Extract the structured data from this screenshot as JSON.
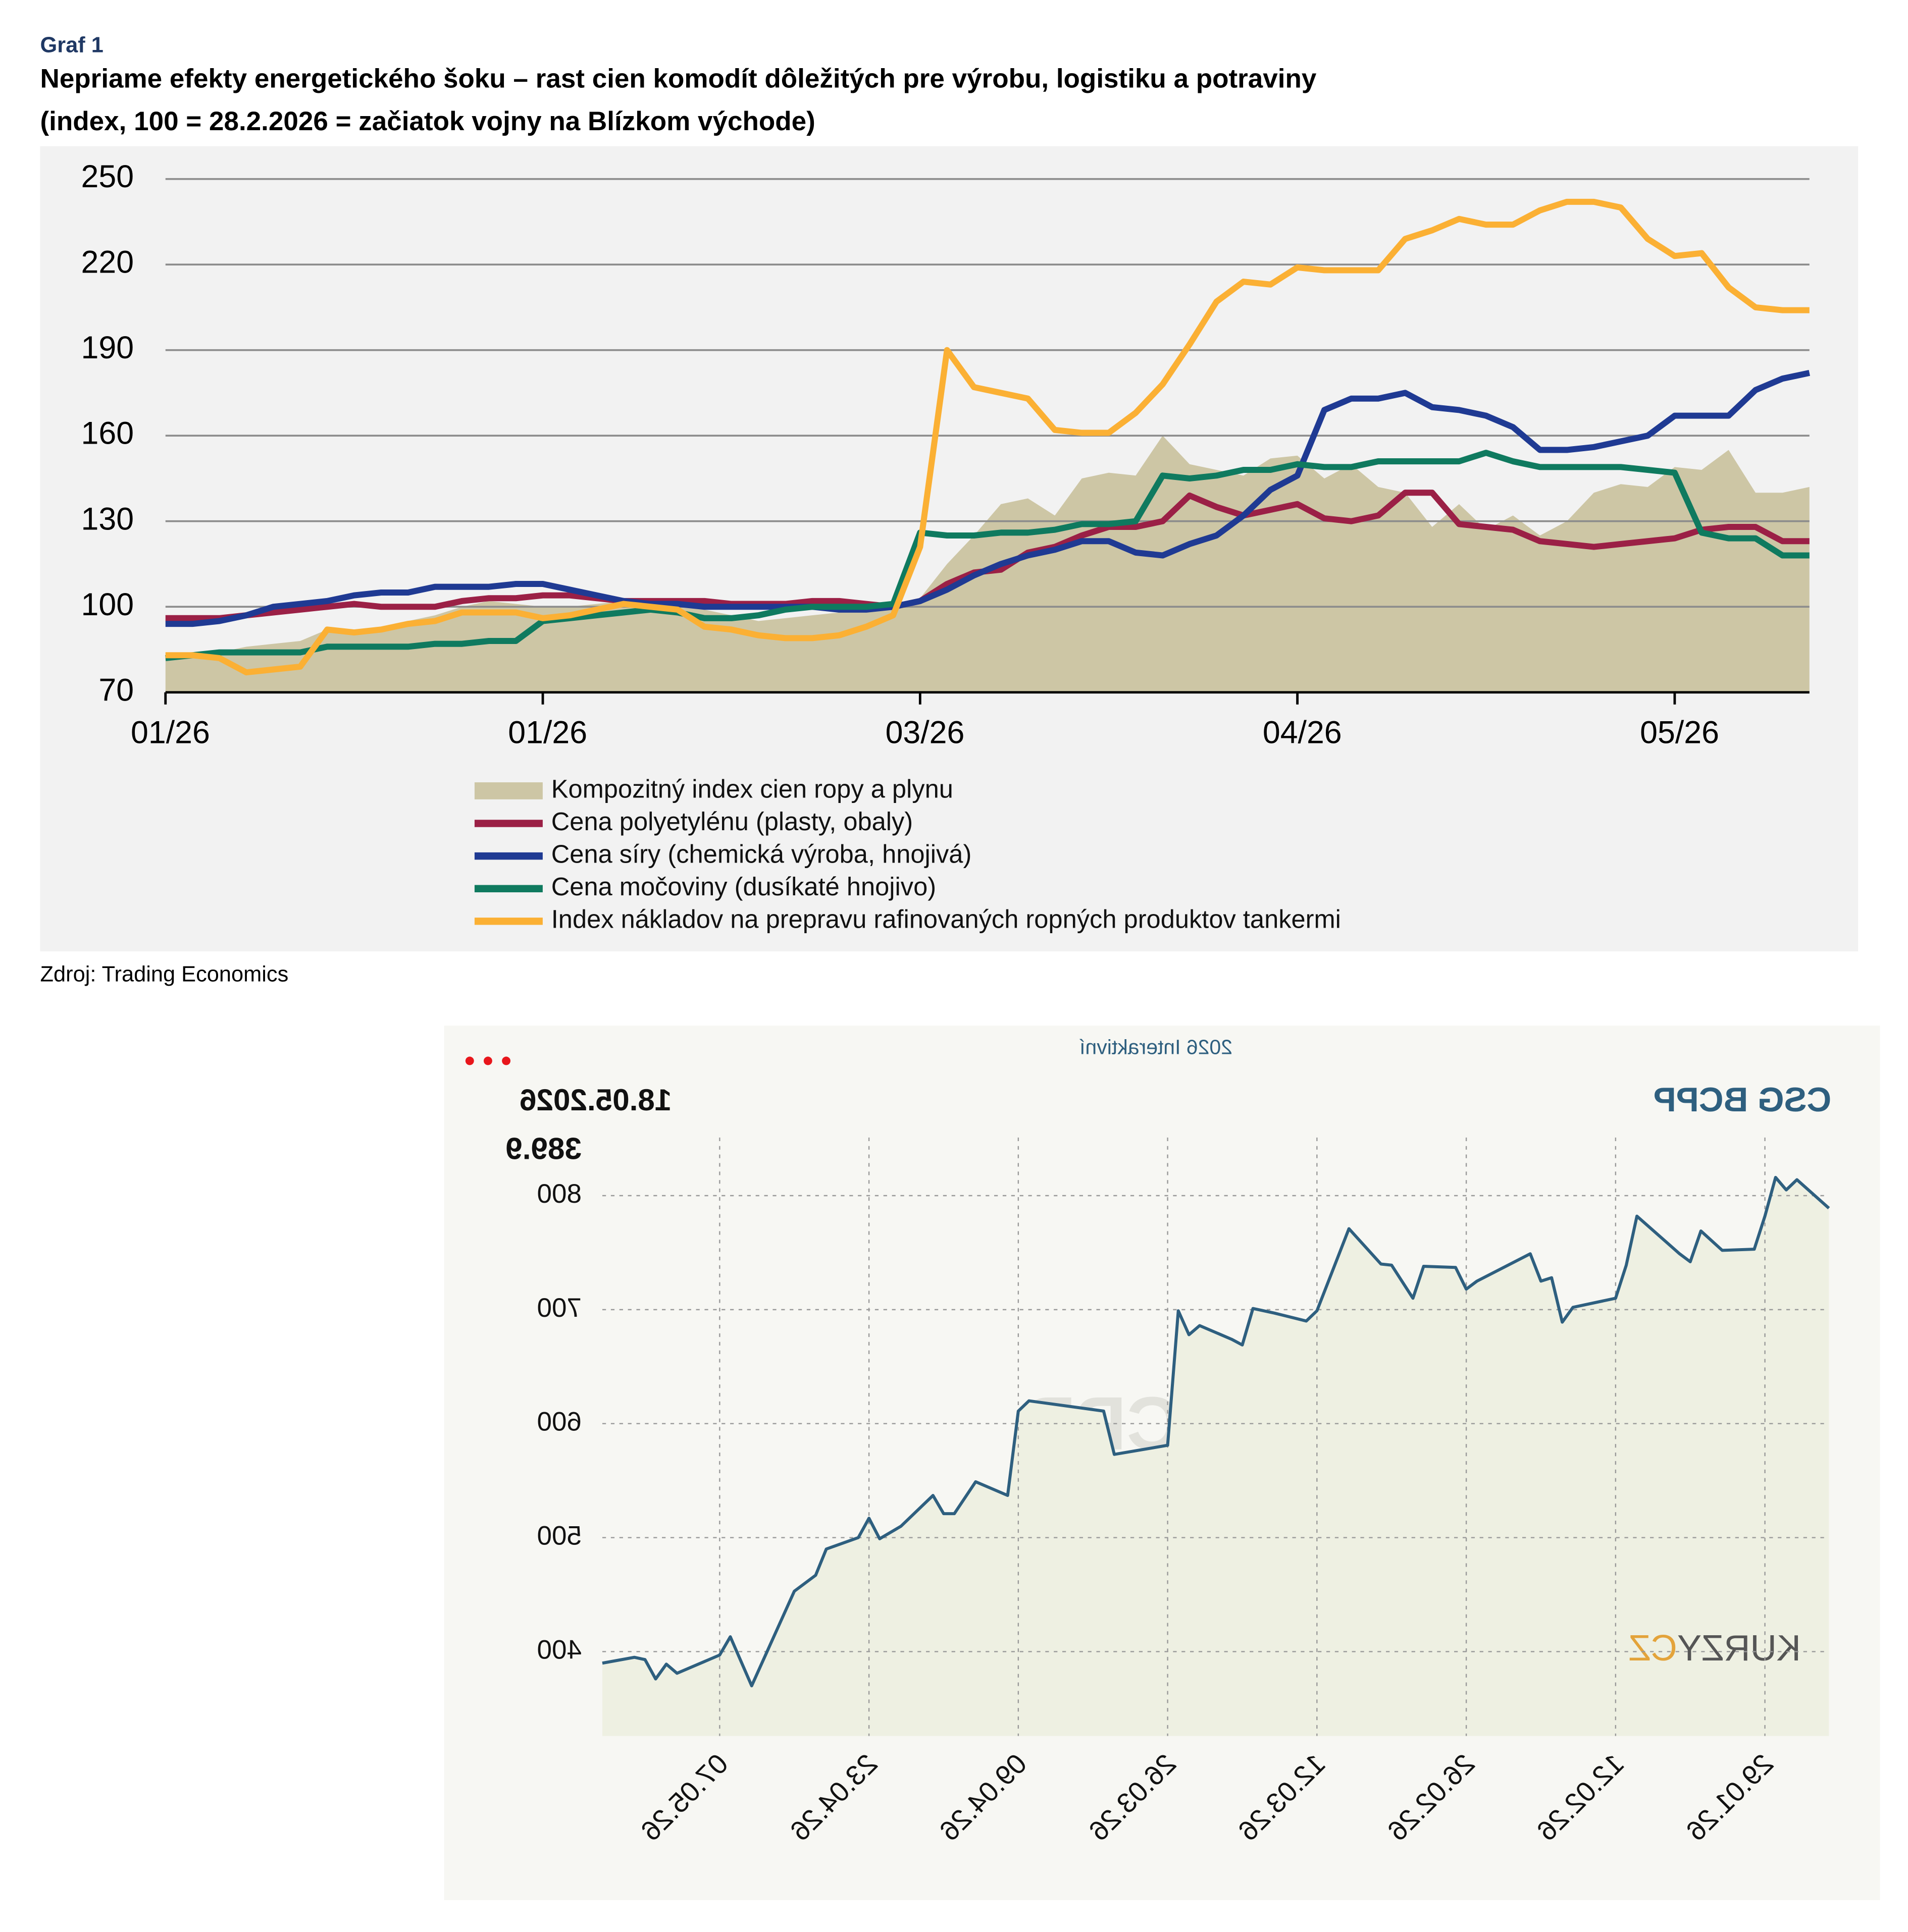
{
  "chart_data": [
    {
      "type": "line",
      "label": "Graf 1",
      "title": "Nepriame efekty energetického šoku – rast cien komodít dôležitých pre výrobu, logistiku a potraviny",
      "subtitle": "(index, 100 = 28.2.2026 = začiatok vojny na Blízkom východe)",
      "source": "Zdroj: Trading Economics",
      "x": [
        0,
        1,
        2,
        3,
        4,
        5,
        6,
        7,
        8,
        9,
        10,
        11,
        12,
        13,
        14,
        15,
        16,
        17,
        18,
        19,
        20,
        21,
        22,
        23,
        24,
        25,
        26,
        27,
        28,
        29,
        30,
        31,
        32,
        33,
        34,
        35,
        36,
        37,
        38,
        39,
        40,
        41,
        42,
        43,
        44,
        45,
        46,
        47,
        48,
        49,
        50,
        51,
        52,
        53,
        54,
        55,
        56,
        57,
        58,
        59,
        60,
        61
      ],
      "xlim": [
        0,
        61
      ],
      "xticks": [
        {
          "value": 0,
          "label": "01/26"
        },
        {
          "value": 14,
          "label": "01/26"
        },
        {
          "value": 28,
          "label": "03/26"
        },
        {
          "value": 42,
          "label": "04/26"
        },
        {
          "value": 56,
          "label": "05/26"
        }
      ],
      "ylim": [
        70,
        250
      ],
      "yticks": [
        70,
        100,
        130,
        160,
        190,
        220,
        250
      ],
      "grid": true,
      "series": [
        {
          "name": "Kompozitný index cien ropy a plynu",
          "color": "#cdc6a5",
          "style": "area",
          "values": [
            82,
            83,
            84,
            86,
            87,
            88,
            92,
            92,
            93,
            95,
            97,
            100,
            102,
            101,
            100,
            100,
            101,
            102,
            101,
            100,
            99,
            97,
            95,
            96,
            97,
            98,
            99,
            100,
            103,
            115,
            125,
            136,
            138,
            132,
            145,
            147,
            146,
            160,
            150,
            148,
            146,
            152,
            153,
            145,
            150,
            142,
            140,
            128,
            136,
            127,
            132,
            125,
            130,
            140,
            143,
            142,
            149,
            148,
            155,
            140,
            140,
            142
          ]
        },
        {
          "name": "Cena polyetylénu (plasty, obaly)",
          "color": "#9b2046",
          "style": "line",
          "values": [
            96,
            96,
            96,
            97,
            98,
            99,
            100,
            101,
            100,
            100,
            100,
            102,
            103,
            103,
            104,
            104,
            103,
            102,
            102,
            102,
            102,
            101,
            101,
            101,
            102,
            102,
            101,
            100,
            102,
            108,
            112,
            113,
            119,
            121,
            125,
            128,
            128,
            130,
            139,
            135,
            132,
            134,
            136,
            131,
            130,
            132,
            140,
            140,
            129,
            128,
            127,
            123,
            122,
            121,
            122,
            123,
            124,
            127,
            128,
            128,
            123,
            123
          ]
        },
        {
          "name": "Cena síry (chemická výroba, hnojivá)",
          "color": "#1f3a93",
          "style": "line",
          "values": [
            94,
            94,
            95,
            97,
            100,
            101,
            102,
            104,
            105,
            105,
            107,
            107,
            107,
            108,
            108,
            106,
            104,
            102,
            101,
            101,
            100,
            100,
            100,
            100,
            100,
            99,
            99,
            100,
            102,
            106,
            111,
            115,
            118,
            120,
            123,
            123,
            119,
            118,
            122,
            125,
            132,
            141,
            146,
            169,
            173,
            173,
            175,
            170,
            169,
            167,
            163,
            155,
            155,
            156,
            158,
            160,
            167,
            167,
            167,
            176,
            180,
            182
          ]
        },
        {
          "name": "Cena močoviny (dusíkaté hnojivo)",
          "color": "#0f7a5f",
          "style": "line",
          "values": [
            82,
            83,
            84,
            84,
            84,
            84,
            86,
            86,
            86,
            86,
            87,
            87,
            88,
            88,
            95,
            96,
            97,
            98,
            99,
            98,
            96,
            96,
            97,
            99,
            100,
            100,
            100,
            101,
            126,
            125,
            125,
            126,
            126,
            127,
            129,
            129,
            130,
            146,
            145,
            146,
            148,
            148,
            150,
            149,
            149,
            151,
            151,
            151,
            151,
            154,
            151,
            149,
            149,
            149,
            149,
            148,
            147,
            126,
            124,
            124,
            118,
            118
          ]
        },
        {
          "name": "Index nákladov na prepravu rafinovaných ropných produktov tankermi",
          "color": "#fbb034",
          "style": "line",
          "values": [
            83,
            83,
            82,
            77,
            78,
            79,
            92,
            91,
            92,
            94,
            95,
            98,
            98,
            98,
            96,
            97,
            99,
            101,
            100,
            99,
            93,
            92,
            90,
            89,
            89,
            90,
            93,
            97,
            121,
            190,
            177,
            175,
            173,
            162,
            161,
            161,
            168,
            178,
            192,
            207,
            214,
            213,
            219,
            218,
            218,
            218,
            229,
            232,
            236,
            234,
            234,
            239,
            242,
            242,
            240,
            229,
            223,
            224,
            212,
            205,
            204,
            204
          ]
        }
      ]
    },
    {
      "type": "line",
      "mirrored": true,
      "header": "2026 Interaktivní",
      "title": "CSG BCPP",
      "watermark": "CSG BCPP",
      "logo": [
        "KURZY",
        "CZ"
      ],
      "current_date": "18.05.2026",
      "current_value": "389.9",
      "color": "#2e5f7f",
      "x": [
        "23.01.26",
        "26.01.26",
        "27.01.26",
        "28.01.26",
        "29.01.26",
        "30.01.26",
        "02.02.26",
        "04.02.26",
        "05.02.26",
        "06.02.26",
        "10.02.26",
        "11.02.26",
        "12.02.26",
        "16.02.26",
        "17.02.26",
        "18.02.26",
        "19.02.26",
        "20.02.26",
        "25.02.26",
        "26.02.26",
        "27.02.26",
        "02.03.26",
        "03.03.26",
        "05.03.26",
        "06.03.26",
        "09.03.26",
        "12.03.26",
        "13.03.26",
        "16.03.26",
        "18.03.26",
        "19.03.26",
        "20.03.26",
        "23.03.26",
        "24.03.26",
        "25.03.26",
        "26.03.26",
        "31.03.26",
        "01.04.26",
        "08.04.26",
        "09.04.26",
        "10.04.26",
        "13.04.26",
        "15.04.26",
        "16.04.26",
        "17.04.26",
        "20.04.26",
        "22.04.26",
        "23.04.26",
        "24.04.26",
        "27.04.26",
        "28.04.26",
        "30.04.26",
        "04.05.26",
        "06.05.26",
        "07.05.26",
        "11.05.26",
        "12.05.26",
        "13.05.26",
        "14.05.26",
        "15.05.26",
        "18.05.26"
      ],
      "values": [
        789,
        814,
        805,
        816,
        782,
        753,
        752,
        769,
        742,
        749,
        782,
        739,
        710,
        702,
        689,
        728,
        725,
        749,
        725,
        718,
        737,
        738,
        710,
        739,
        740,
        771,
        699,
        690,
        697,
        701,
        669,
        674,
        686,
        678,
        699,
        581,
        573,
        611,
        620,
        611,
        537,
        549,
        521,
        521,
        537,
        510,
        499,
        517,
        500,
        490,
        467,
        453,
        370,
        413,
        397,
        381,
        389,
        376,
        393,
        395,
        389.9
      ],
      "xlim": [
        "23.01.26",
        "18.05.26"
      ],
      "xticks": [
        "29.01.26",
        "12.02.26",
        "26.02.26",
        "12.03.26",
        "26.03.26",
        "09.04.26",
        "23.04.26",
        "07.05.26"
      ],
      "ylim": [
        326,
        851
      ],
      "yticks": [
        400,
        500,
        600,
        700,
        800
      ],
      "grid": true
    }
  ]
}
